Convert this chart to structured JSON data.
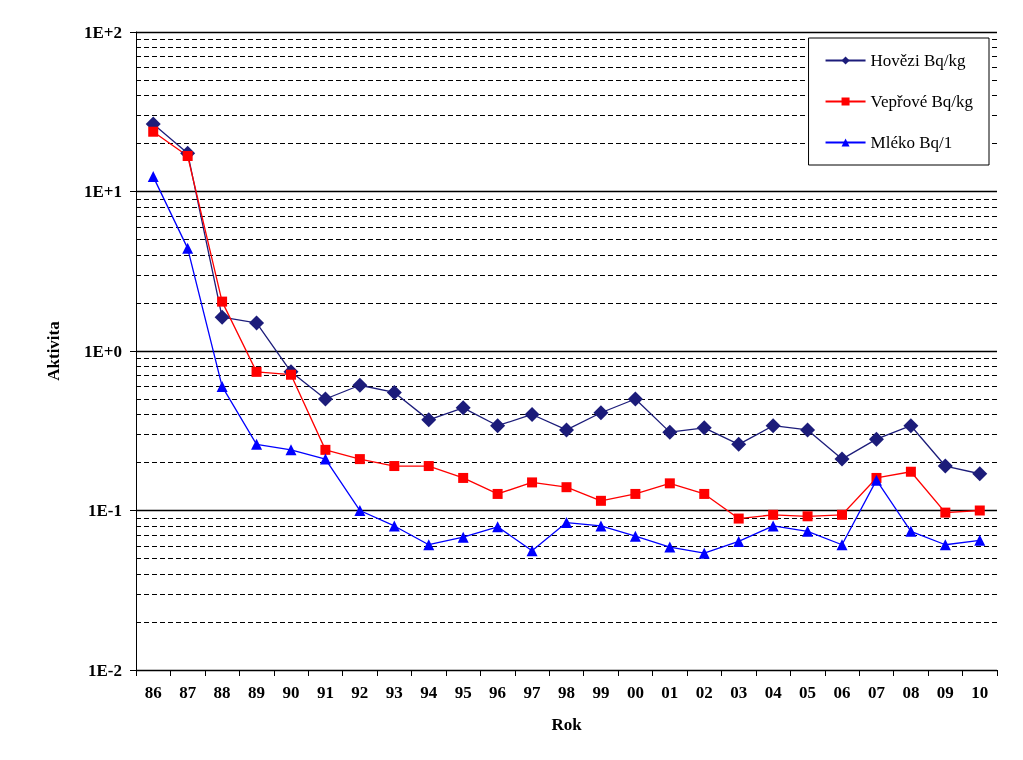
{
  "chart_data": {
    "type": "line",
    "xlabel": "Rok",
    "ylabel": "Aktivita",
    "categories": [
      "86",
      "87",
      "88",
      "89",
      "90",
      "91",
      "92",
      "93",
      "94",
      "95",
      "96",
      "97",
      "98",
      "99",
      "00",
      "01",
      "02",
      "03",
      "04",
      "05",
      "06",
      "07",
      "08",
      "09",
      "10"
    ],
    "series": [
      {
        "name": "Hovězi Bq/kg",
        "color": "#1c1c7a",
        "marker": "diamond",
        "values": [
          26.5,
          17.4,
          1.63,
          1.5,
          0.74,
          0.5,
          0.61,
          0.55,
          0.37,
          0.44,
          0.34,
          0.4,
          0.32,
          0.41,
          0.5,
          0.31,
          0.33,
          0.26,
          0.34,
          0.32,
          0.21,
          0.28,
          0.34,
          0.19,
          0.17
        ]
      },
      {
        "name": "Vepřové Bq/kg",
        "color": "#ff0000",
        "marker": "square",
        "values": [
          23.7,
          16.7,
          2.04,
          0.74,
          0.71,
          0.24,
          0.21,
          0.19,
          0.19,
          0.16,
          0.127,
          0.15,
          0.14,
          0.115,
          0.127,
          0.148,
          0.127,
          0.089,
          0.094,
          0.092,
          0.094,
          0.16,
          0.175,
          0.097,
          0.1
        ]
      },
      {
        "name": "Mléko Bq/1",
        "color": "#0000ff",
        "marker": "triangle",
        "values": [
          12.4,
          4.4,
          0.6,
          0.26,
          0.24,
          0.21,
          0.1,
          0.08,
          0.061,
          0.068,
          0.079,
          0.056,
          0.084,
          0.08,
          0.069,
          0.059,
          0.054,
          0.064,
          0.08,
          0.074,
          0.061,
          0.155,
          0.074,
          0.061,
          0.065
        ]
      }
    ],
    "log": "y",
    "ylim": [
      0.01,
      100
    ],
    "yticks": [
      {
        "value": 0.01,
        "label": "1E-2"
      },
      {
        "value": 0.02,
        "label": null
      },
      {
        "value": 0.03,
        "label": null
      },
      {
        "value": 0.04,
        "label": null
      },
      {
        "value": 0.05,
        "label": null
      },
      {
        "value": 0.06,
        "label": null
      },
      {
        "value": 0.07,
        "label": null
      },
      {
        "value": 0.08,
        "label": null
      },
      {
        "value": 0.09,
        "label": null
      },
      {
        "value": 0.1,
        "label": "1E-1"
      },
      {
        "value": 0.2,
        "label": null
      },
      {
        "value": 0.3,
        "label": null
      },
      {
        "value": 0.4,
        "label": null
      },
      {
        "value": 0.5,
        "label": null
      },
      {
        "value": 0.6,
        "label": null
      },
      {
        "value": 0.7,
        "label": null
      },
      {
        "value": 0.8,
        "label": null
      },
      {
        "value": 0.9,
        "label": null
      },
      {
        "value": 1,
        "label": "1E+0"
      },
      {
        "value": 2,
        "label": null
      },
      {
        "value": 3,
        "label": null
      },
      {
        "value": 4,
        "label": null
      },
      {
        "value": 5,
        "label": null
      },
      {
        "value": 6,
        "label": null
      },
      {
        "value": 7,
        "label": null
      },
      {
        "value": 8,
        "label": null
      },
      {
        "value": 9,
        "label": null
      },
      {
        "value": 10,
        "label": "1E+1"
      },
      {
        "value": 20,
        "label": null
      },
      {
        "value": 30,
        "label": null
      },
      {
        "value": 40,
        "label": null
      },
      {
        "value": 50,
        "label": null
      },
      {
        "value": 60,
        "label": null
      },
      {
        "value": 70,
        "label": null
      },
      {
        "value": 80,
        "label": null
      },
      {
        "value": 90,
        "label": null
      },
      {
        "value": 100,
        "label": "1E+2"
      }
    ],
    "grid": "y",
    "legend": "top right"
  }
}
